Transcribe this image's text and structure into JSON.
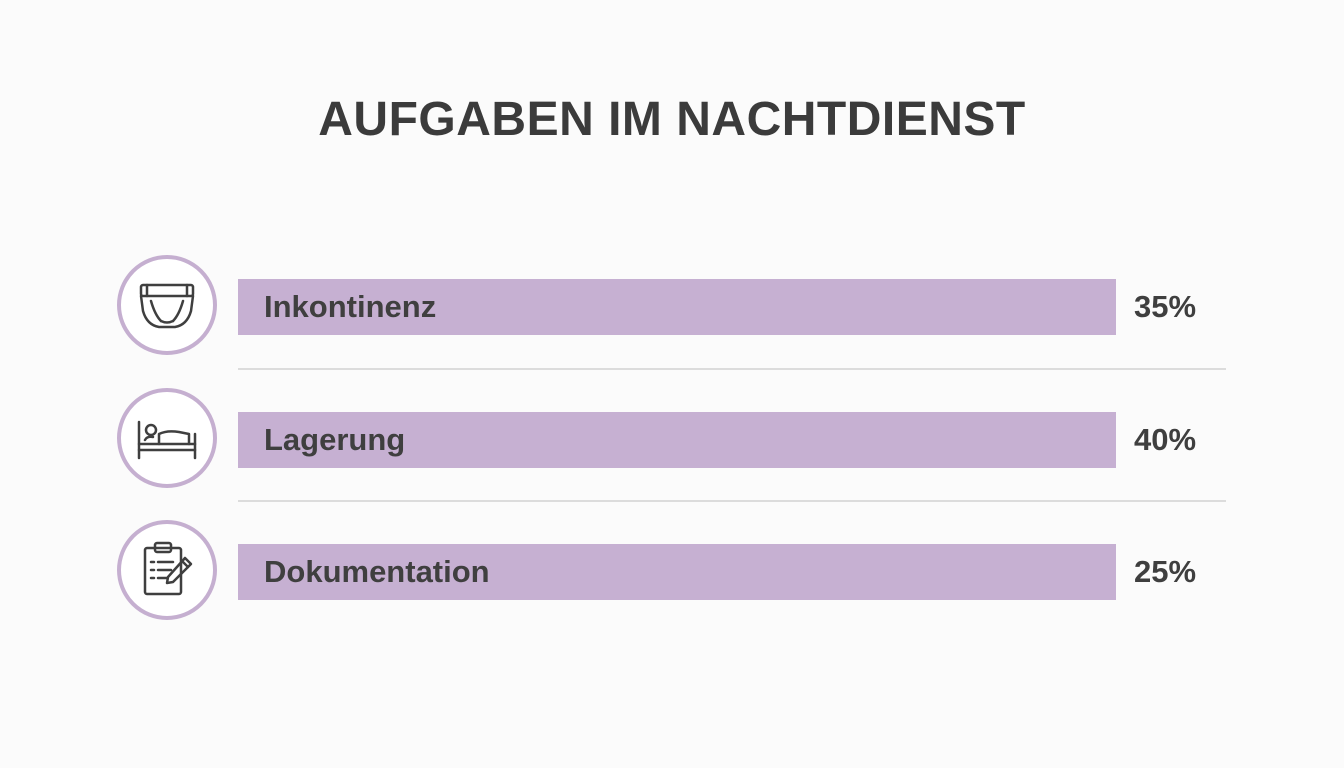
{
  "chart_data": {
    "type": "bar",
    "title": "AUFGABEN IM NACHTDIENST",
    "categories": [
      "Inkontinenz",
      "Lagerung",
      "Dokumentation"
    ],
    "values": [
      35,
      40,
      25
    ],
    "value_labels": [
      "35%",
      "40%",
      "25%"
    ],
    "icons": [
      "diaper-icon",
      "bed-icon",
      "clipboard-icon"
    ],
    "unit": "%",
    "orientation": "horizontal",
    "grid": false,
    "legend": "none"
  },
  "colors": {
    "bar": "#c6b0d2",
    "icon_ring": "#c5afd0",
    "text": "#3f3f3f",
    "background": "#fbfbfb",
    "divider": "#dcdcdc"
  }
}
